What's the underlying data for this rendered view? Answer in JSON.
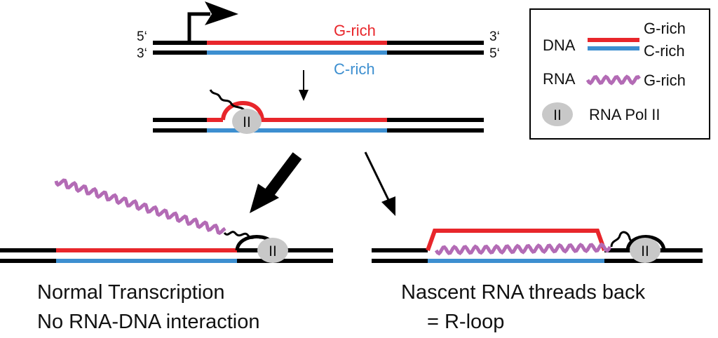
{
  "colors": {
    "dna_strand": "#000000",
    "g_rich": "#e8262b",
    "c_rich": "#3d8fd0",
    "rna": "#b36bb5",
    "pol_fill": "#c8c8c8"
  },
  "top": {
    "label_5prime_top": "5‘",
    "label_3prime_bottom": "3‘",
    "label_3prime_top_right": "3‘",
    "label_5prime_bottom_right": "5‘",
    "g_rich_label": "G-rich",
    "c_rich_label": "C-rich"
  },
  "legend": {
    "dna_label": "DNA",
    "dna_g_label": "G-rich",
    "dna_c_label": "C-rich",
    "rna_label": "RNA",
    "rna_g_label": "G-rich",
    "pol_symbol": "II",
    "pol_label": "RNA Pol II"
  },
  "pol_symbol": "II",
  "bottom": {
    "left_caption_line1": "Normal Transcription",
    "left_caption_line2": "No RNA-DNA interaction",
    "right_caption_line1": "Nascent RNA threads back",
    "right_caption_line2": "= R-loop"
  }
}
